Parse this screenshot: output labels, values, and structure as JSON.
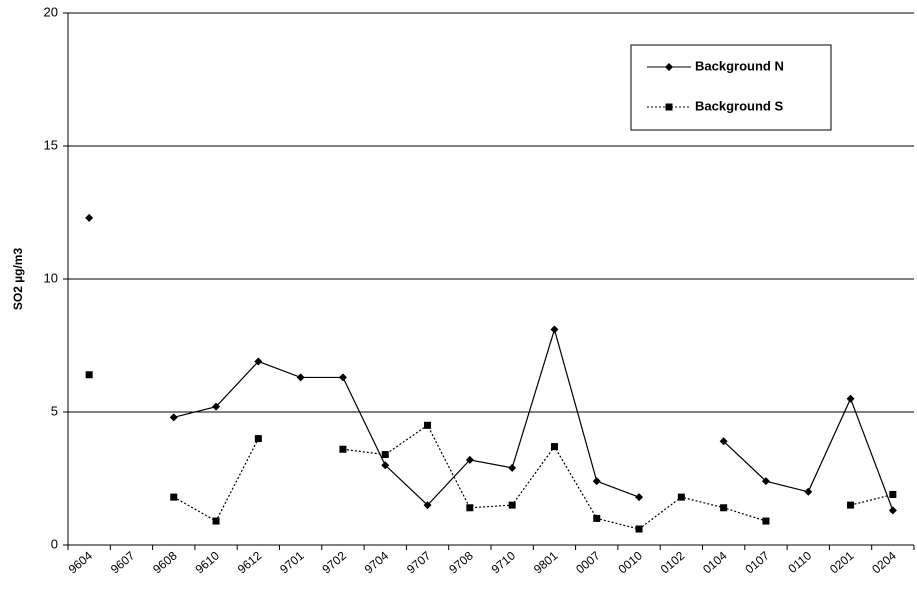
{
  "chart_data": {
    "type": "line",
    "y_label": "SO2 µg/m3",
    "categories": [
      "9604",
      "9607",
      "9608",
      "9610",
      "9612",
      "9701",
      "9702",
      "9704",
      "9707",
      "9708",
      "9710",
      "9801",
      "0007",
      "0010",
      "0102",
      "0104",
      "0107",
      "0110",
      "0201",
      "0204"
    ],
    "series": [
      {
        "name": "Background N",
        "color": "#000000",
        "marker": "diamond",
        "dash": "solid",
        "values": [
          12.3,
          null,
          4.8,
          5.2,
          6.9,
          6.3,
          6.3,
          3.0,
          1.5,
          3.2,
          2.9,
          8.1,
          2.4,
          1.8,
          null,
          3.9,
          2.4,
          2.0,
          5.5,
          1.3
        ]
      },
      {
        "name": "Background S",
        "color": "#000000",
        "marker": "square",
        "dash": "dotted",
        "values": [
          6.4,
          null,
          1.8,
          0.9,
          4.0,
          null,
          3.6,
          3.4,
          4.5,
          1.4,
          1.5,
          3.7,
          1.0,
          0.6,
          1.8,
          1.4,
          0.9,
          null,
          1.5,
          1.9
        ]
      }
    ],
    "ylim": [
      0,
      20
    ],
    "yticks": [
      0,
      5,
      10,
      15,
      20
    ],
    "grid": true,
    "legend": "top-right"
  }
}
